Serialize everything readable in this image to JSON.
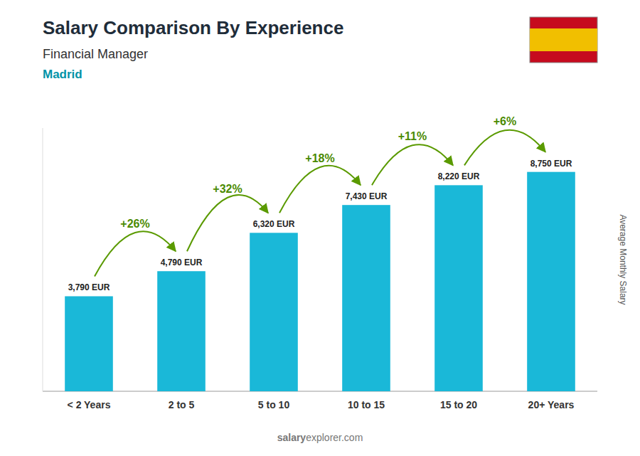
{
  "chart_data": {
    "type": "bar",
    "title": "Salary Comparison By Experience",
    "subtitle": "Financial Manager",
    "city": "Madrid",
    "ylabel": "Average Monthly Salary",
    "watermark": [
      "salary",
      "explorer.com"
    ],
    "categories": [
      "< 2 Years",
      "2 to 5",
      "5 to 10",
      "10 to 15",
      "15 to 20",
      "20+ Years"
    ],
    "values": [
      3790,
      4790,
      6320,
      7430,
      8220,
      8750
    ],
    "value_labels": [
      "3,790 EUR",
      "4,790 EUR",
      "6,320 EUR",
      "7,430 EUR",
      "8,220 EUR",
      "8,750 EUR"
    ],
    "data_labels": true,
    "color": "#1ab8d8",
    "ylim": [
      0,
      10500
    ],
    "grid": false,
    "tick_labels": "x",
    "annotations": [
      {
        "text": "+26%",
        "from": "< 2 Years",
        "to": "2 to 5"
      },
      {
        "text": "+32%",
        "from": "2 to 5",
        "to": "5 to 10"
      },
      {
        "text": "+18%",
        "from": "5 to 10",
        "to": "10 to 15"
      },
      {
        "text": "+11%",
        "from": "10 to 15",
        "to": "15 to 20"
      },
      {
        "text": "+6%",
        "from": "15 to 20",
        "to": "20+ Years"
      }
    ]
  }
}
